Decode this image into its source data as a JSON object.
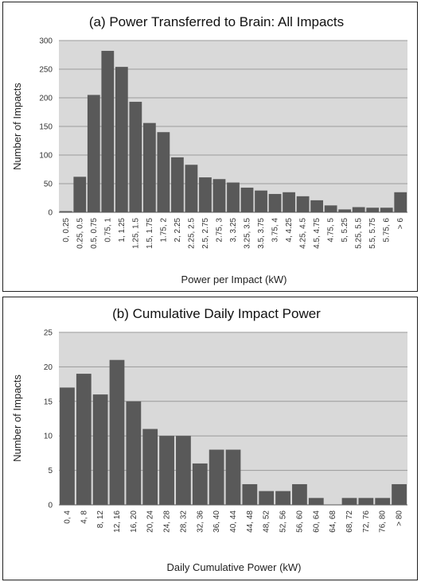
{
  "chart_data": [
    {
      "type": "bar",
      "title": "(a) Power Transferred to Brain: All Impacts",
      "xlabel": "Power per Impact (kW)",
      "ylabel": "Number of Impacts",
      "ylim": [
        0,
        300
      ],
      "yticks": [
        0,
        50,
        100,
        150,
        200,
        250,
        300
      ],
      "grid": true,
      "bar_color": "#595959",
      "plot_bg": "#d9d9d9",
      "categories": [
        "0, 0.25",
        "0.25, 0.5",
        "0.5, 0.75",
        "0.75, 1",
        "1, 1.25",
        "1.25, 1.5",
        "1.5, 1.75",
        "1.75, 2",
        "2, 2.25",
        "2.25, 2.5",
        "2.5, 2.75",
        "2.75, 3",
        "3, 3.25",
        "3.25, 3.5",
        "3.5, 3.75",
        "3.75, 4",
        "4, 4.25",
        "4.25, 4.5",
        "4.5, 4.75",
        "4.75, 5",
        "5, 5.25",
        "5.25, 5.5",
        "5.5, 5.75",
        "5.75, 6",
        "> 6"
      ],
      "values": [
        2,
        62,
        205,
        282,
        254,
        193,
        156,
        140,
        96,
        83,
        61,
        58,
        52,
        43,
        38,
        32,
        35,
        28,
        21,
        12,
        5,
        9,
        8,
        8,
        35
      ]
    },
    {
      "type": "bar",
      "title": "(b) Cumulative  Daily Impact Power",
      "xlabel": "Daily Cumulative Power (kW)",
      "ylabel": "Number of Impacts",
      "ylim": [
        0,
        25
      ],
      "yticks": [
        0,
        5,
        10,
        15,
        20,
        25
      ],
      "grid": true,
      "bar_color": "#595959",
      "plot_bg": "#d9d9d9",
      "categories": [
        "0, 4",
        "4, 8",
        "8, 12",
        "12, 16",
        "16, 20",
        "20, 24",
        "24, 28",
        "28, 32",
        "32, 36",
        "36, 40",
        "40, 44",
        "44, 48",
        "48, 52",
        "52, 56",
        "56, 60",
        "60, 64",
        "64, 68",
        "68, 72",
        "72, 76",
        "76, 80",
        "> 80"
      ],
      "values": [
        17,
        19,
        16,
        21,
        15,
        11,
        10,
        10,
        6,
        8,
        8,
        3,
        2,
        2,
        3,
        1,
        0,
        1,
        1,
        1,
        3
      ]
    }
  ]
}
